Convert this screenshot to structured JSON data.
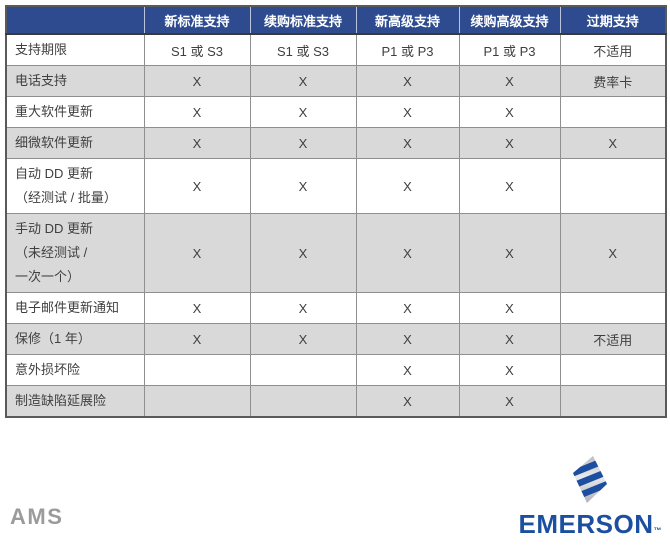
{
  "colors": {
    "header_bg": "#2d4b8e",
    "header_text": "#ffffff",
    "row_shade": "#d9d9d9",
    "grid_line": "#8f8f8f",
    "body_text": "#3f3f3f",
    "ams_gray": "#9b9b9b",
    "emerson_blue": "#1c4f9f"
  },
  "table": {
    "corner_label": "",
    "columns": [
      "新标准支持",
      "续购标准支持",
      "新高级支持",
      "续购高级支持",
      "过期支持"
    ],
    "rows": [
      {
        "label_lines": [
          "支持期限"
        ],
        "values": [
          "S1 或 S3",
          "S1 或 S3",
          "P1 或 P3",
          "P1 或 P3",
          "不适用"
        ]
      },
      {
        "label_lines": [
          "电话支持"
        ],
        "values": [
          "X",
          "X",
          "X",
          "X",
          "费率卡"
        ]
      },
      {
        "label_lines": [
          "重大软件更新"
        ],
        "values": [
          "X",
          "X",
          "X",
          "X",
          ""
        ]
      },
      {
        "label_lines": [
          "细微软件更新"
        ],
        "values": [
          "X",
          "X",
          "X",
          "X",
          "X"
        ]
      },
      {
        "label_lines": [
          "自动 DD 更新",
          "（经测试 / 批量）"
        ],
        "values": [
          "X",
          "X",
          "X",
          "X",
          ""
        ]
      },
      {
        "label_lines": [
          "手动 DD 更新",
          "（未经测试 /",
          "一次一个）"
        ],
        "values": [
          "X",
          "X",
          "X",
          "X",
          "X"
        ]
      },
      {
        "label_lines": [
          "电子邮件更新通知"
        ],
        "values": [
          "X",
          "X",
          "X",
          "X",
          ""
        ]
      },
      {
        "label_lines": [
          "保修（1 年）"
        ],
        "values": [
          "X",
          "X",
          "X",
          "X",
          "不适用"
        ]
      },
      {
        "label_lines": [
          "意外损坏险"
        ],
        "values": [
          "",
          "",
          "X",
          "X",
          ""
        ]
      },
      {
        "label_lines": [
          "制造缺陷延展险"
        ],
        "values": [
          "",
          "",
          "X",
          "X",
          ""
        ]
      }
    ]
  },
  "footer": {
    "ams_label": "AMS",
    "emerson_label": "EMERSON",
    "emerson_tm": "™"
  }
}
